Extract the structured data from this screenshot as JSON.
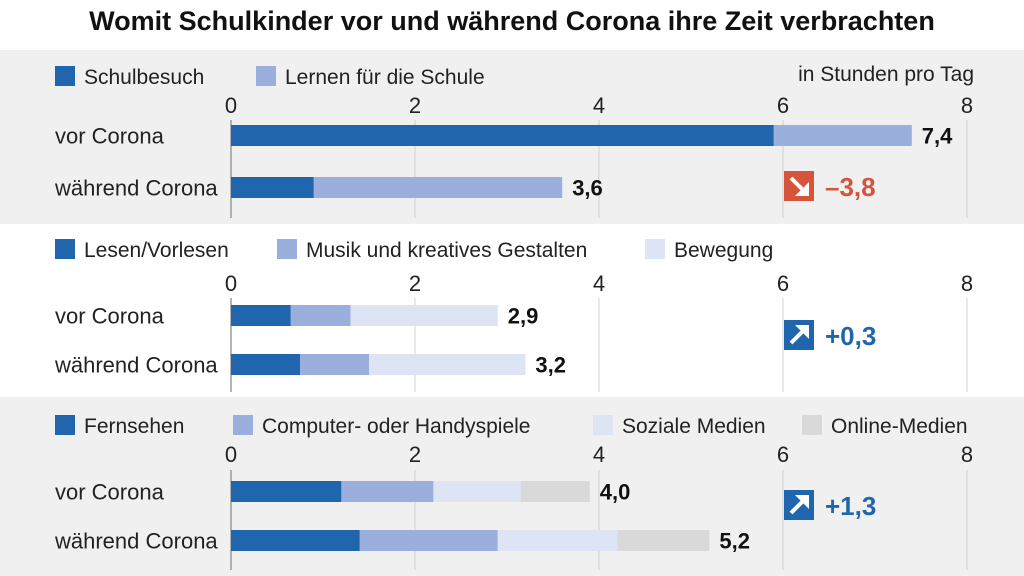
{
  "chart_data": {
    "type": "bar",
    "orientation": "horizontal",
    "stacked": true,
    "title": "Womit Schulkinder vor und während Corona ihre Zeit verbrachten",
    "unit_label": "in Stunden pro Tag",
    "xlim": [
      0,
      8
    ],
    "ticks": [
      "0",
      "2",
      "4",
      "6",
      "8"
    ],
    "grid": true,
    "legend_position": "top-left",
    "panels": [
      {
        "categories": [
          "vor Corona",
          "während Corona"
        ],
        "series": [
          {
            "name": "Schulbesuch",
            "color": "#2166ac",
            "values": [
              5.9,
              0.9
            ]
          },
          {
            "name": "Lernen für die Schule",
            "color": "#9aafdc",
            "values": [
              1.5,
              2.7
            ]
          }
        ],
        "totals": [
          "7,4",
          "3,6"
        ],
        "change": {
          "label": "–3,8",
          "direction": "down",
          "color": "#d6533c"
        }
      },
      {
        "categories": [
          "vor Corona",
          "während Corona"
        ],
        "series": [
          {
            "name": "Lesen/Vorlesen",
            "color": "#2166ac",
            "values": [
              0.65,
              0.75
            ]
          },
          {
            "name": "Musik und kreatives Gestalten",
            "color": "#9aafdc",
            "values": [
              0.65,
              0.75
            ]
          },
          {
            "name": "Bewegung",
            "color": "#dde4f4",
            "values": [
              1.6,
              1.7
            ]
          }
        ],
        "totals": [
          "2,9",
          "3,2"
        ],
        "change": {
          "label": "+0,3",
          "direction": "up",
          "color": "#2166ac"
        }
      },
      {
        "categories": [
          "vor Corona",
          "während Corona"
        ],
        "series": [
          {
            "name": "Fernsehen",
            "color": "#2166ac",
            "values": [
              1.2,
              1.4
            ]
          },
          {
            "name": "Computer- oder Handyspiele",
            "color": "#9aafdc",
            "values": [
              1.0,
              1.5
            ]
          },
          {
            "name": "Soziale Medien",
            "color": "#dde4f4",
            "values": [
              0.95,
              1.3
            ]
          },
          {
            "name": "Online-Medien",
            "color": "#d9d9d9",
            "values": [
              0.75,
              1.0
            ]
          }
        ],
        "totals": [
          "4,0",
          "5,2"
        ],
        "change": {
          "label": "+1,3",
          "direction": "up",
          "color": "#2166ac"
        }
      }
    ]
  }
}
